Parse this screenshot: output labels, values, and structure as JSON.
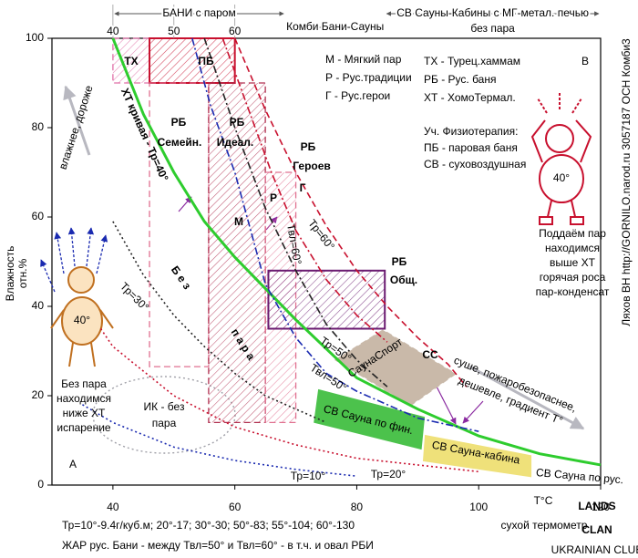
{
  "chart_data": {
    "type": "line",
    "xlim": [
      30,
      120
    ],
    "ylim": [
      0,
      100
    ],
    "xticks": [
      40,
      60,
      80,
      100,
      120
    ],
    "yticks": [
      0,
      20,
      40,
      60,
      80,
      100
    ],
    "top_xticks": [
      40,
      50,
      60
    ],
    "x_label": "сухой термометр",
    "x_unit": "Т°С",
    "y_label": "Влажность",
    "y_unit": "отн.%",
    "series": [
      {
        "name": "ХТ кривая - Тр=40°",
        "color": "#2ecc2e",
        "dash": "solid",
        "x": [
          40,
          45,
          50,
          55,
          60,
          65,
          70,
          80,
          90,
          100,
          110,
          120
        ],
        "values": [
          100,
          83,
          70,
          59,
          51,
          44,
          37,
          24,
          17,
          11,
          7,
          4.5
        ]
      },
      {
        "name": "Тр=60°",
        "color": "#c8102e",
        "dash": "dashed",
        "x": [
          60,
          65,
          70,
          75,
          80,
          85,
          90,
          95,
          98
        ],
        "values": [
          100,
          84,
          70,
          58,
          48,
          40,
          33,
          27,
          22
        ]
      },
      {
        "name": "Твл=60°",
        "color": "#c8102e",
        "dash": "dashdot",
        "x": [
          58,
          62,
          66,
          70,
          75,
          80,
          85
        ],
        "values": [
          100,
          85,
          70,
          57,
          46,
          38,
          32
        ]
      },
      {
        "name": "Тр=50°",
        "color": "#222222",
        "dash": "dashdot",
        "x": [
          55,
          60,
          65,
          70,
          75,
          80,
          85
        ],
        "values": [
          100,
          80,
          62,
          48,
          36,
          28,
          22
        ]
      },
      {
        "name": "Твл=50°",
        "color": "#1a2ab0",
        "dash": "dashdot",
        "x": [
          53,
          56,
          60,
          65,
          70,
          75,
          80,
          90,
          100
        ],
        "values": [
          100,
          85,
          70,
          45,
          33,
          25,
          21,
          15,
          12
        ]
      },
      {
        "name": "Тр=30°",
        "color": "#222222",
        "dash": "dotted",
        "x": [
          40,
          45,
          50,
          55,
          60,
          65,
          70,
          75
        ],
        "values": [
          59,
          47,
          38,
          31,
          25,
          20,
          17,
          14
        ]
      },
      {
        "name": "Тр=10°",
        "color": "#1a2ab0",
        "dash": "dotted",
        "x": [
          35,
          40,
          50,
          60,
          70,
          80
        ],
        "values": [
          18,
          14,
          8.5,
          5.5,
          3.5,
          2
        ]
      },
      {
        "name": "Тр=20°",
        "color": "#c8102e",
        "dash": "dotted",
        "x": [
          38,
          40,
          50,
          60,
          70,
          80,
          90,
          100
        ],
        "values": [
          35,
          31,
          20,
          13,
          9,
          6,
          4.5,
          3
        ]
      }
    ],
    "zones": [
      {
        "color": "#e070a8",
        "hatch": true,
        "filled": false,
        "border": "dashed",
        "x": [
          40,
          46
        ],
        "y": [
          90,
          100
        ]
      },
      {
        "color": "#c8102e",
        "hatch": true,
        "filled": false,
        "border": "solid",
        "x": [
          46,
          60
        ],
        "y": [
          90,
          100
        ]
      },
      {
        "color": "#e07090",
        "hatch": false,
        "filled": false,
        "border": "dashed",
        "x": [
          46,
          55.7
        ],
        "y": [
          26.5,
          90
        ]
      },
      {
        "color": "#b03050",
        "hatch": true,
        "filled": false,
        "border": "dashed",
        "x": [
          55.7,
          65
        ],
        "y": [
          14,
          90
        ]
      },
      {
        "color": "#e07090",
        "hatch": true,
        "filled": false,
        "border": "dashed",
        "x": [
          65,
          70
        ],
        "y": [
          14,
          70
        ]
      },
      {
        "color": "#6a1a70",
        "hatch": true,
        "filled": false,
        "border": "solid",
        "x": [
          65.5,
          84.6
        ],
        "y": [
          35,
          48
        ]
      },
      {
        "color": "#c9b9a9",
        "hatch": false,
        "filled": true,
        "border": "dashed",
        "x": [
          76.5,
          84.3,
          96.2,
          88.8
        ],
        "y": [
          28,
          34.7,
          24.9,
          17.8
        ]
      },
      {
        "color": "#4cc24c",
        "hatch": false,
        "filled": true,
        "border": "solid",
        "x": [
          73.8,
          91,
          90.5,
          73.1
        ],
        "y": [
          21.2,
          15.1,
          8.2,
          14.1
        ]
      },
      {
        "color": "#efe17a",
        "hatch": false,
        "filled": true,
        "border": "solid",
        "x": [
          91.3,
          108.5,
          108.5,
          91
        ],
        "y": [
          11,
          6.5,
          2,
          5.5
        ]
      }
    ],
    "ranges": [
      {
        "label": "БАНИ с паром",
        "x": [
          40,
          68.3
        ]
      },
      {
        "label": "Комби Бани-Сауны",
        "x": [
          68.3,
          84.6
        ]
      },
      {
        "label": "СВ Сауны-Кабины с МГ-метал. печью",
        "sublabel": "без пара",
        "x": [
          84.6,
          120
        ]
      }
    ],
    "labels": [
      "ТХ",
      "ПБ",
      "РБ",
      "Семейн.",
      "РБ",
      "Идеал.",
      "РБ",
      "Героев",
      "Р",
      "Г",
      "М",
      "РБ",
      "Общ.",
      "СаунаСпорт",
      "СС",
      "СВ Сауна по фин.",
      "СВ Сауна-кабина",
      "СВ Сауна по рус.",
      "Б е з",
      "п а р а",
      "М - Мягкий пар",
      "Р - Рус.традиции",
      "Г - Рус.герои",
      "ТХ - Турец.хаммам",
      "РБ - Рус. баня",
      "ХТ - ХомоТермал.",
      "Уч. Физиотерапия:",
      "ПБ - паровая баня",
      "СВ - суховоздушная",
      "влажнее, дороже",
      "суше, пожаробезопаснее,",
      "дешевле, градиент Т°",
      "40°",
      "Без пара",
      "находимся",
      "ниже ХТ",
      "испарение",
      "А",
      "В",
      "40°",
      "Поддаём пар",
      "находимся",
      "выше ХТ",
      "горячая роса",
      "пар-конденсат",
      "ИК - без",
      "пара",
      "Ляхов ВН  http://GORNILO.narod.ru 3057187 ОСН Комби3",
      "Тр=10°-9.4г/куб.м;  20°-17;  30°-30;  50°-83;  55°-104;  60°-130",
      "ЖАР рус. Бани - между Твл=50° и Твл=60° - в т.ч. и овал РБИ",
      "LANDS",
      "CLAN",
      "UKRAINIAN CLUB"
    ]
  }
}
